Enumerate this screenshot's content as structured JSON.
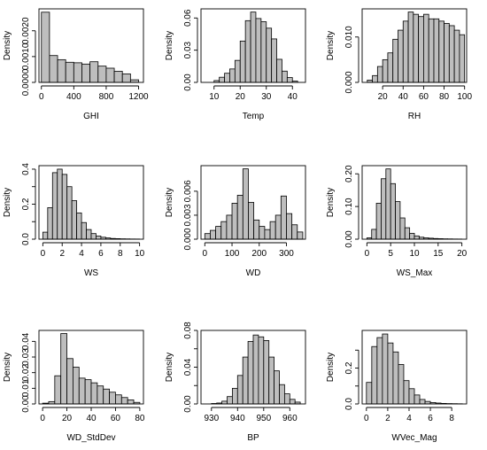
{
  "chart_data": [
    {
      "type": "bar",
      "histogram": true,
      "ylabel": "Density",
      "xlabel": "GHI",
      "xticks": [
        0,
        400,
        800,
        1200
      ],
      "yticks": [
        0.0,
        0.001,
        0.002
      ],
      "ytick_labels": [
        "0.0000",
        "0.0010",
        "0.0020"
      ],
      "bins": [
        [
          0,
          100
        ],
        [
          100,
          200
        ],
        [
          200,
          300
        ],
        [
          300,
          400
        ],
        [
          400,
          500
        ],
        [
          500,
          600
        ],
        [
          600,
          700
        ],
        [
          700,
          800
        ],
        [
          800,
          900
        ],
        [
          900,
          1000
        ],
        [
          1000,
          1100
        ],
        [
          1100,
          1200
        ]
      ],
      "values": [
        0.00272,
        0.00104,
        0.00088,
        0.00078,
        0.00076,
        0.00071,
        0.0008,
        0.00063,
        0.00055,
        0.00043,
        0.00033,
        0.0001
      ]
    },
    {
      "type": "bar",
      "histogram": true,
      "ylabel": "Density",
      "xlabel": "Temp",
      "xticks": [
        10,
        20,
        30,
        40
      ],
      "yticks": [
        0.0,
        0.03,
        0.06
      ],
      "ytick_labels": [
        "0.00",
        "0.03",
        "0.06"
      ],
      "bins": [
        [
          10,
          12
        ],
        [
          12,
          14
        ],
        [
          14,
          16
        ],
        [
          16,
          18
        ],
        [
          18,
          20
        ],
        [
          20,
          22
        ],
        [
          22,
          24
        ],
        [
          24,
          26
        ],
        [
          26,
          28
        ],
        [
          28,
          30
        ],
        [
          30,
          32
        ],
        [
          32,
          34
        ],
        [
          34,
          36
        ],
        [
          36,
          38
        ],
        [
          38,
          40
        ],
        [
          40,
          42
        ]
      ],
      "values": [
        0.0017,
        0.0048,
        0.0085,
        0.0125,
        0.0205,
        0.0385,
        0.0575,
        0.0655,
        0.0595,
        0.0565,
        0.0505,
        0.0405,
        0.0215,
        0.0105,
        0.0045,
        0.0012
      ]
    },
    {
      "type": "bar",
      "histogram": true,
      "ylabel": "Density",
      "xlabel": "RH",
      "xticks": [
        20,
        40,
        60,
        80,
        100
      ],
      "yticks": [
        0.0,
        0.01
      ],
      "ytick_labels": [
        "0.000",
        "0.010"
      ],
      "bins": [
        [
          5,
          10
        ],
        [
          10,
          15
        ],
        [
          15,
          20
        ],
        [
          20,
          25
        ],
        [
          25,
          30
        ],
        [
          30,
          35
        ],
        [
          35,
          40
        ],
        [
          40,
          45
        ],
        [
          45,
          50
        ],
        [
          50,
          55
        ],
        [
          55,
          60
        ],
        [
          60,
          65
        ],
        [
          65,
          70
        ],
        [
          70,
          75
        ],
        [
          75,
          80
        ],
        [
          80,
          85
        ],
        [
          85,
          90
        ],
        [
          90,
          95
        ],
        [
          95,
          100
        ]
      ],
      "values": [
        0.0005,
        0.0015,
        0.0035,
        0.005,
        0.0065,
        0.0095,
        0.0115,
        0.0135,
        0.0155,
        0.015,
        0.0145,
        0.015,
        0.014,
        0.014,
        0.0135,
        0.013,
        0.0125,
        0.0115,
        0.0105
      ]
    },
    {
      "type": "bar",
      "histogram": true,
      "ylabel": "Density",
      "xlabel": "WS",
      "xticks": [
        0,
        2,
        4,
        6,
        8,
        10
      ],
      "yticks": [
        0.0,
        0.1,
        0.2,
        0.3,
        0.4
      ],
      "ytick_labels": [
        "0.0",
        "",
        "0.2",
        "",
        "0.4"
      ],
      "bins": [
        [
          0,
          0.5
        ],
        [
          0.5,
          1
        ],
        [
          1,
          1.5
        ],
        [
          1.5,
          2
        ],
        [
          2,
          2.5
        ],
        [
          2.5,
          3
        ],
        [
          3,
          3.5
        ],
        [
          3.5,
          4
        ],
        [
          4,
          4.5
        ],
        [
          4.5,
          5
        ],
        [
          5,
          5.5
        ],
        [
          5.5,
          6
        ],
        [
          6,
          6.5
        ],
        [
          6.5,
          7
        ],
        [
          7,
          7.5
        ],
        [
          7.5,
          8
        ],
        [
          8,
          8.5
        ],
        [
          8.5,
          9
        ],
        [
          9,
          9.5
        ],
        [
          9.5,
          10
        ]
      ],
      "values": [
        0.04,
        0.18,
        0.38,
        0.4,
        0.37,
        0.3,
        0.22,
        0.15,
        0.095,
        0.055,
        0.032,
        0.018,
        0.011,
        0.007,
        0.004,
        0.003,
        0.002,
        0.0015,
        0.001,
        0.0008
      ]
    },
    {
      "type": "bar",
      "histogram": true,
      "ylabel": "Density",
      "xlabel": "WD",
      "xticks": [
        0,
        100,
        200,
        300
      ],
      "yticks": [
        0.0,
        0.003,
        0.006
      ],
      "ytick_labels": [
        "0.000",
        "0.003",
        "0.006"
      ],
      "bins": [
        [
          0,
          20
        ],
        [
          20,
          40
        ],
        [
          40,
          60
        ],
        [
          60,
          80
        ],
        [
          80,
          100
        ],
        [
          100,
          120
        ],
        [
          120,
          140
        ],
        [
          140,
          160
        ],
        [
          160,
          180
        ],
        [
          180,
          200
        ],
        [
          200,
          220
        ],
        [
          220,
          240
        ],
        [
          240,
          260
        ],
        [
          260,
          280
        ],
        [
          280,
          300
        ],
        [
          300,
          320
        ],
        [
          320,
          340
        ],
        [
          340,
          360
        ]
      ],
      "values": [
        0.0007,
        0.0011,
        0.0016,
        0.0022,
        0.003,
        0.0045,
        0.0055,
        0.0088,
        0.0046,
        0.0024,
        0.0016,
        0.0012,
        0.0022,
        0.003,
        0.0054,
        0.0032,
        0.0018,
        0.0009
      ]
    },
    {
      "type": "bar",
      "histogram": true,
      "ylabel": "Density",
      "xlabel": "WS_Max",
      "xticks": [
        0,
        5,
        10,
        15,
        20
      ],
      "yticks": [
        0.0,
        0.1,
        0.2
      ],
      "ytick_labels": [
        "0.00",
        "0.10",
        "0.20"
      ],
      "bins": [
        [
          0,
          1
        ],
        [
          1,
          2
        ],
        [
          2,
          3
        ],
        [
          3,
          4
        ],
        [
          4,
          5
        ],
        [
          5,
          6
        ],
        [
          6,
          7
        ],
        [
          7,
          8
        ],
        [
          8,
          9
        ],
        [
          9,
          10
        ],
        [
          10,
          11
        ],
        [
          11,
          12
        ],
        [
          12,
          13
        ],
        [
          13,
          14
        ],
        [
          14,
          15
        ],
        [
          15,
          16
        ],
        [
          16,
          17
        ],
        [
          17,
          18
        ],
        [
          18,
          19
        ],
        [
          19,
          20
        ]
      ],
      "values": [
        0.004,
        0.03,
        0.11,
        0.185,
        0.215,
        0.17,
        0.115,
        0.065,
        0.035,
        0.018,
        0.01,
        0.006,
        0.004,
        0.003,
        0.002,
        0.0015,
        0.001,
        0.0008,
        0.0005,
        0.0004
      ]
    },
    {
      "type": "bar",
      "histogram": true,
      "ylabel": "Density",
      "xlabel": "WD_StdDev",
      "xticks": [
        0,
        20,
        40,
        60,
        80
      ],
      "yticks": [
        0.0,
        0.01,
        0.02,
        0.03,
        0.04
      ],
      "ytick_labels": [
        "0.00",
        "0.01",
        "0.02",
        "0.03",
        "0.04"
      ],
      "bins": [
        [
          0,
          5
        ],
        [
          5,
          10
        ],
        [
          10,
          15
        ],
        [
          15,
          20
        ],
        [
          20,
          25
        ],
        [
          25,
          30
        ],
        [
          30,
          35
        ],
        [
          35,
          40
        ],
        [
          40,
          45
        ],
        [
          45,
          50
        ],
        [
          50,
          55
        ],
        [
          55,
          60
        ],
        [
          60,
          65
        ],
        [
          65,
          70
        ],
        [
          70,
          75
        ],
        [
          75,
          80
        ]
      ],
      "values": [
        0.0005,
        0.0015,
        0.018,
        0.045,
        0.029,
        0.0235,
        0.0165,
        0.0155,
        0.0135,
        0.0115,
        0.0095,
        0.0075,
        0.0058,
        0.0041,
        0.0026,
        0.001
      ]
    },
    {
      "type": "bar",
      "histogram": true,
      "ylabel": "Density",
      "xlabel": "BP",
      "xticks": [
        930,
        940,
        950,
        960
      ],
      "yticks": [
        0.0,
        0.02,
        0.04,
        0.06,
        0.08
      ],
      "ytick_labels": [
        "0.00",
        "",
        "0.04",
        "",
        "0.08"
      ],
      "bins": [
        [
          930,
          932
        ],
        [
          932,
          934
        ],
        [
          934,
          936
        ],
        [
          936,
          938
        ],
        [
          938,
          940
        ],
        [
          940,
          942
        ],
        [
          942,
          944
        ],
        [
          944,
          946
        ],
        [
          946,
          948
        ],
        [
          948,
          950
        ],
        [
          950,
          952
        ],
        [
          952,
          954
        ],
        [
          954,
          956
        ],
        [
          956,
          958
        ],
        [
          958,
          960
        ],
        [
          960,
          962
        ],
        [
          962,
          964
        ]
      ],
      "values": [
        0.0005,
        0.001,
        0.003,
        0.008,
        0.017,
        0.031,
        0.051,
        0.068,
        0.075,
        0.073,
        0.069,
        0.051,
        0.036,
        0.021,
        0.011,
        0.005,
        0.002
      ]
    },
    {
      "type": "bar",
      "histogram": true,
      "ylabel": "Density",
      "xlabel": "WVec_Mag",
      "xticks": [
        0,
        2,
        4,
        6,
        8
      ],
      "yticks": [
        0.0,
        0.1,
        0.2,
        0.3
      ],
      "ytick_labels": [
        "0.0",
        "",
        "0.2",
        ""
      ],
      "bins": [
        [
          0,
          0.5
        ],
        [
          0.5,
          1
        ],
        [
          1,
          1.5
        ],
        [
          1.5,
          2
        ],
        [
          2,
          2.5
        ],
        [
          2.5,
          3
        ],
        [
          3,
          3.5
        ],
        [
          3.5,
          4
        ],
        [
          4,
          4.5
        ],
        [
          4.5,
          5
        ],
        [
          5,
          5.5
        ],
        [
          5.5,
          6
        ],
        [
          6,
          6.5
        ],
        [
          6.5,
          7
        ],
        [
          7,
          7.5
        ],
        [
          7.5,
          8
        ],
        [
          8,
          8.5
        ],
        [
          8.5,
          9
        ]
      ],
      "values": [
        0.12,
        0.32,
        0.37,
        0.39,
        0.34,
        0.29,
        0.22,
        0.13,
        0.085,
        0.05,
        0.025,
        0.014,
        0.008,
        0.005,
        0.003,
        0.002,
        0.0015,
        0.001
      ]
    }
  ]
}
